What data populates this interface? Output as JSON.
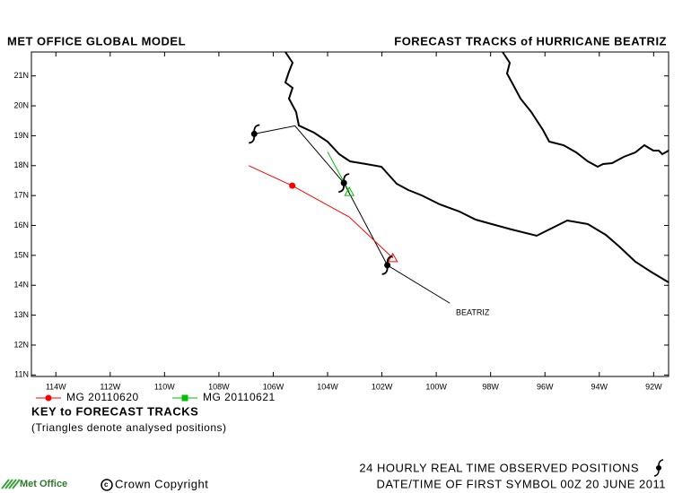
{
  "chart_data": {
    "type": "track",
    "title": "MET OFFICE GLOBAL MODEL",
    "subtitle": "FORECAST TRACKS of HURRICANE BEATRIZ",
    "xlim": [
      -114.9,
      -91.45
    ],
    "ylim": [
      10.95,
      21.8
    ],
    "xticks": [
      {
        "value": -114,
        "label": "114W"
      },
      {
        "value": -112,
        "label": "112W"
      },
      {
        "value": -110,
        "label": "110W"
      },
      {
        "value": -108,
        "label": "108W"
      },
      {
        "value": -106,
        "label": "106W"
      },
      {
        "value": -104,
        "label": "104W"
      },
      {
        "value": -102,
        "label": "102W"
      },
      {
        "value": -100,
        "label": "100W"
      },
      {
        "value": -98,
        "label": "98W"
      },
      {
        "value": -96,
        "label": "96W"
      },
      {
        "value": -94,
        "label": "94W"
      },
      {
        "value": -92,
        "label": "92W"
      }
    ],
    "yticks": [
      {
        "value": 11,
        "label": "11N"
      },
      {
        "value": 12,
        "label": "12N"
      },
      {
        "value": 13,
        "label": "13N"
      },
      {
        "value": 14,
        "label": "14N"
      },
      {
        "value": 15,
        "label": "15N"
      },
      {
        "value": 16,
        "label": "16N"
      },
      {
        "value": 17,
        "label": "17N"
      },
      {
        "value": 18,
        "label": "18N"
      },
      {
        "value": 19,
        "label": "19N"
      },
      {
        "value": 20,
        "label": "20N"
      },
      {
        "value": 21,
        "label": "21N"
      }
    ],
    "series": [
      {
        "name": "BEATRIZ",
        "color": "#000000",
        "x": [
          -106.7,
          -105.2,
          -103.4,
          -101.8,
          -99.5
        ],
        "y": [
          19.06,
          19.33,
          17.42,
          14.67,
          13.4
        ]
      },
      {
        "name": "MG 20110620",
        "color": "#ff0000",
        "marker": "circle",
        "x": [
          -106.9,
          -105.3,
          -103.2,
          -101.6
        ],
        "y": [
          18.0,
          17.33,
          16.28,
          14.91
        ]
      },
      {
        "name": "MG 20110621",
        "color": "#00c000",
        "marker": "square",
        "x": [
          -104.0,
          -103.2
        ],
        "y": [
          18.46,
          17.12
        ]
      }
    ],
    "observed": {
      "x": [
        -106.7,
        -103.4,
        -101.8
      ],
      "y": [
        19.06,
        17.42,
        14.67
      ]
    },
    "key_title": "KEY to FORECAST TRACKS",
    "key_note": "(Triangles denote analysed positions)",
    "logo": "Met Office",
    "copyright": "Crown Copyright",
    "observed_note": "24 HOURLY REAL TIME OBSERVED POSITIONS",
    "date_note": "DATE/TIME OF FIRST SYMBOL 00Z 20 JUNE 2011"
  }
}
